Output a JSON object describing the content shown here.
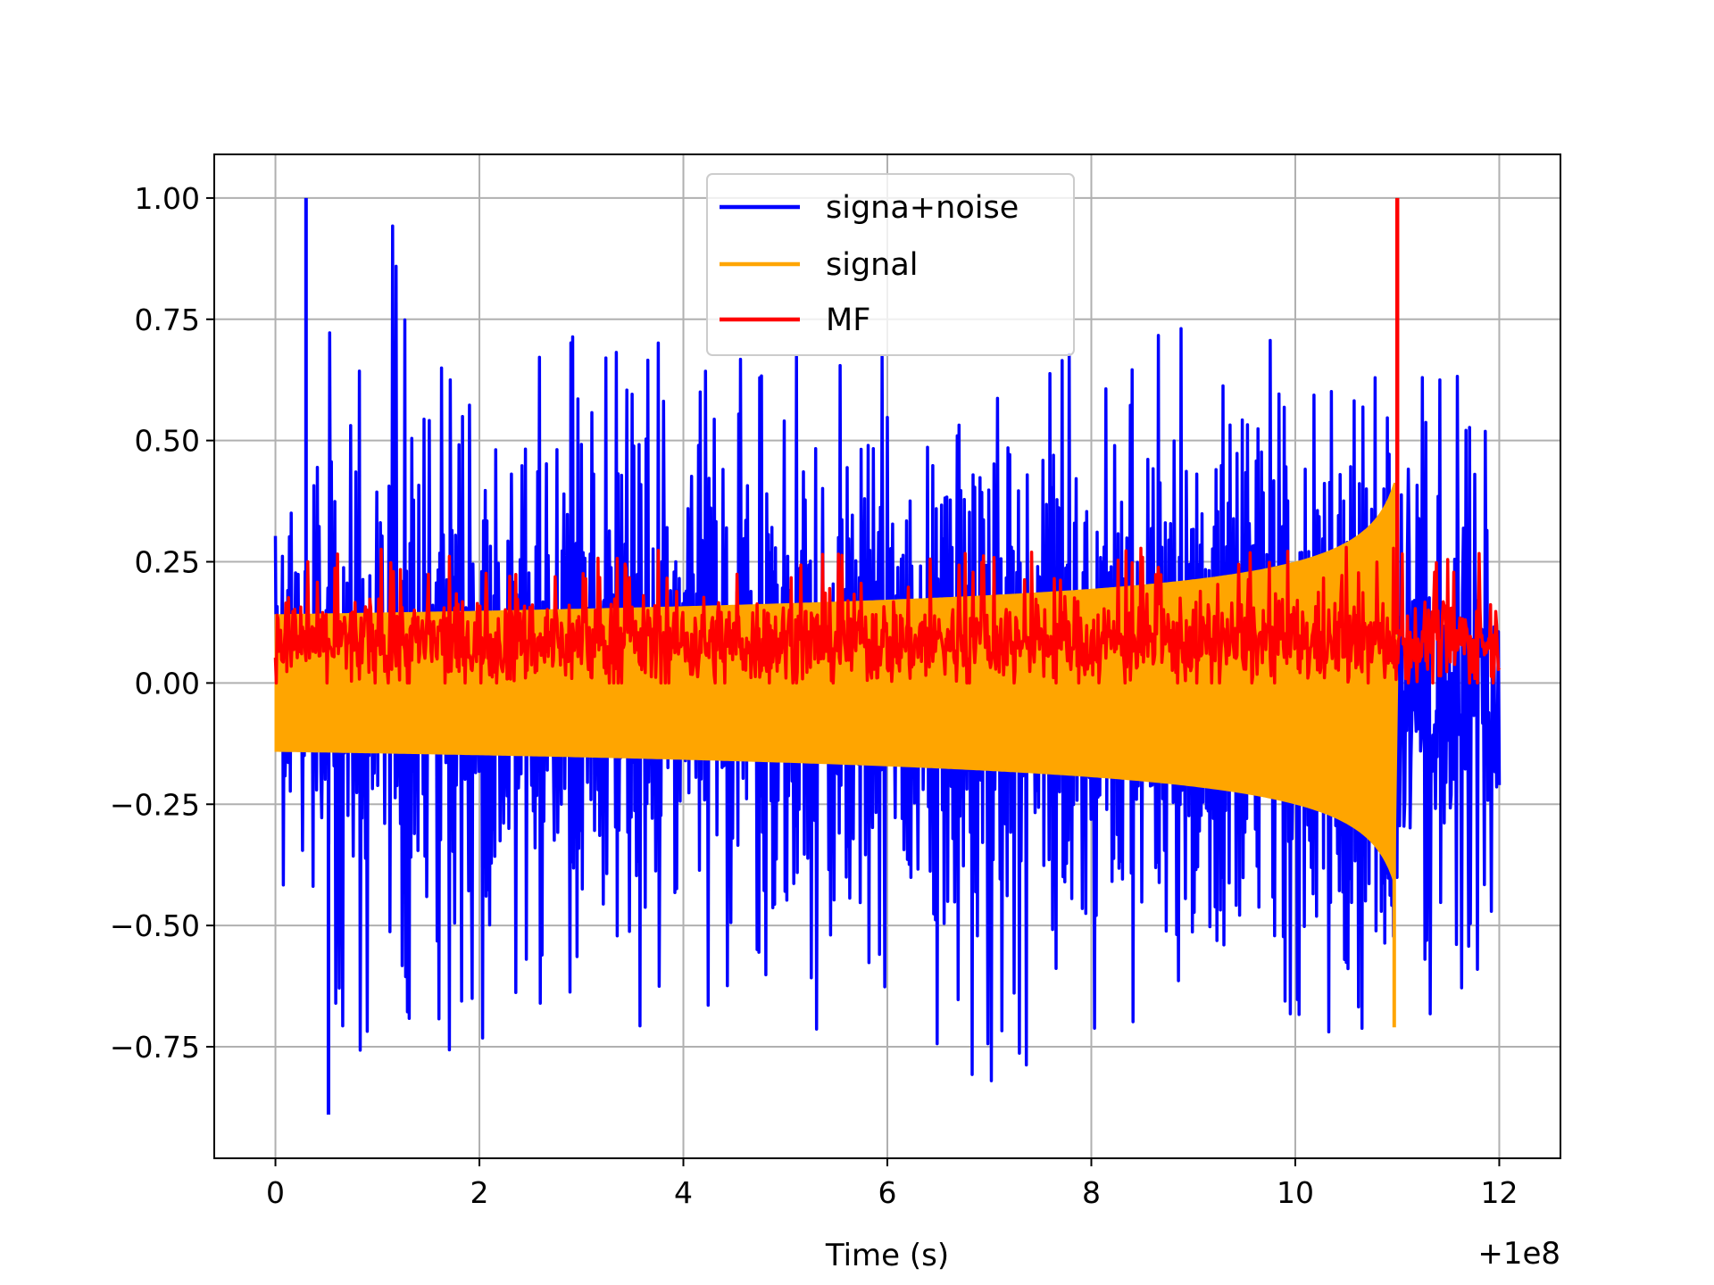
{
  "chart_data": {
    "type": "line",
    "xlabel": "Time (s)",
    "ylabel": "",
    "x_offset_label": "+1e8",
    "xlim": [
      -0.6,
      12.6
    ],
    "ylim": [
      -0.98,
      1.09
    ],
    "xticks": [
      0,
      2,
      4,
      6,
      8,
      10,
      12
    ],
    "xtick_labels": [
      "0",
      "2",
      "4",
      "6",
      "8",
      "10",
      "12"
    ],
    "yticks": [
      -0.75,
      -0.5,
      -0.25,
      0.0,
      0.25,
      0.5,
      0.75,
      1.0
    ],
    "ytick_labels": [
      "−0.75",
      "−0.50",
      "−0.25",
      "0.00",
      "0.25",
      "0.50",
      "0.75",
      "1.00"
    ],
    "grid": true,
    "legend_position": "top-center",
    "series": [
      {
        "name": "signa+noise",
        "color": "#0000ff",
        "x_range": [
          0,
          12
        ],
        "envelope_upper": [
          0.42,
          1.0,
          0.7,
          0.72,
          0.7,
          0.72,
          0.7,
          0.6,
          0.75,
          0.75,
          0.7,
          0.68,
          0.7
        ],
        "envelope_lower": [
          -0.45,
          -0.89,
          -0.78,
          -0.72,
          -0.72,
          -0.75,
          -0.7,
          -0.88,
          -0.72,
          -0.68,
          -0.7,
          -0.79,
          -0.6
        ],
        "peak_max": {
          "x": 0.3,
          "y": 1.0
        },
        "peak_min": {
          "x": 0.52,
          "y": -0.89
        }
      },
      {
        "name": "signal",
        "color": "#ffa500",
        "x_range": [
          0,
          11.0
        ],
        "amplitude_start": 0.14,
        "amplitude_near_merger": 0.5,
        "merger_time": 11.0,
        "min_value": -0.71
      },
      {
        "name": "MF",
        "color": "#ff0000",
        "x_range": [
          0,
          12
        ],
        "baseline_range": [
          0.0,
          0.2
        ],
        "peak": {
          "x": 11.0,
          "y": 1.0
        }
      }
    ]
  }
}
